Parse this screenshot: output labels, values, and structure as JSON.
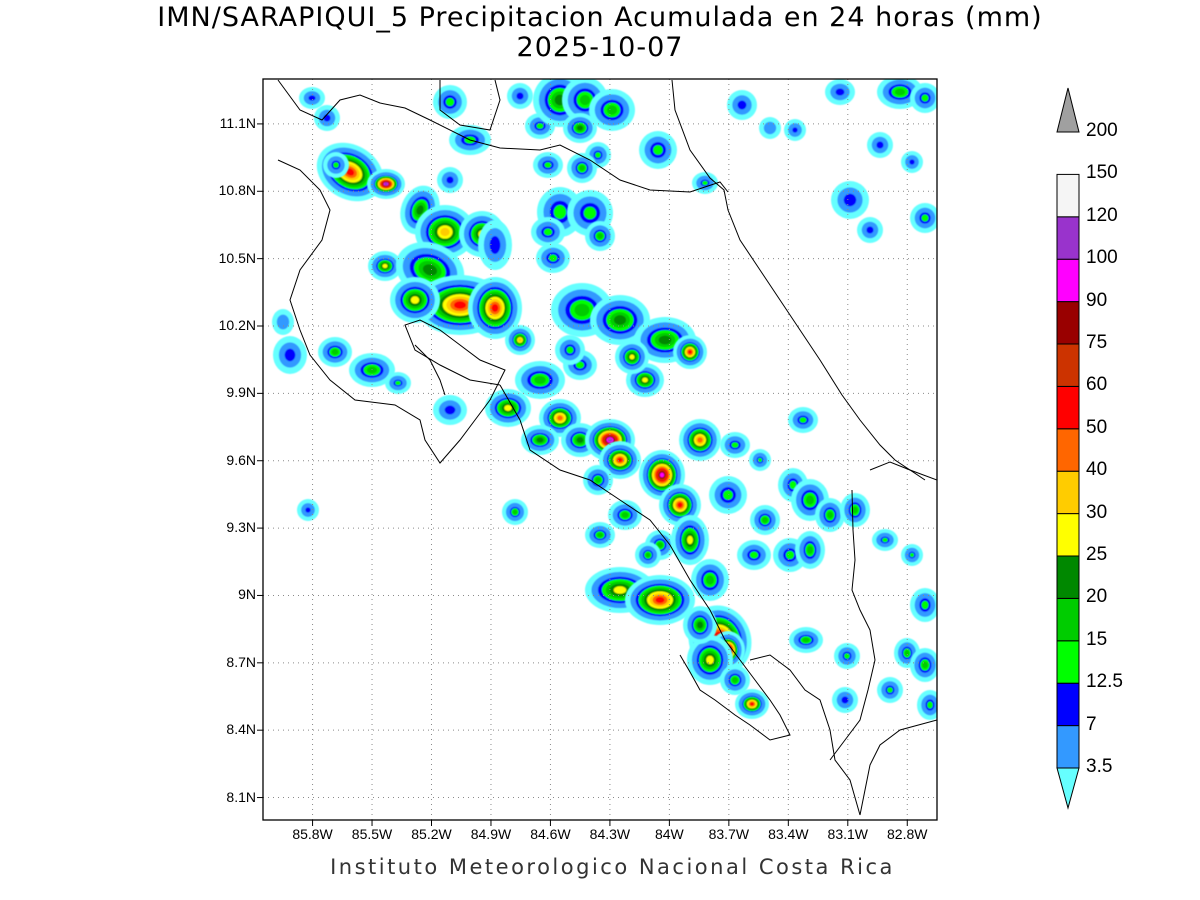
{
  "title": {
    "line1": "IMN/SARAPIQUI_5 Precipitacion Acumulada en 24 horas (mm)",
    "line2": "2025-10-07"
  },
  "footer": "Instituto Meteorologico Nacional Costa Rica",
  "map": {
    "lon_range": [
      -86.05,
      -82.65
    ],
    "lat_range": [
      8.0,
      11.3
    ],
    "lat_ticks": [
      "11.1N",
      "10.8N",
      "10.5N",
      "10.2N",
      "9.9N",
      "9.6N",
      "9.3N",
      "9N",
      "8.7N",
      "8.4N",
      "8.1N"
    ],
    "lon_ticks": [
      "85.8W",
      "85.5W",
      "85.2W",
      "84.9W",
      "84.6W",
      "84.3W",
      "84W",
      "83.7W",
      "83.4W",
      "83.1W",
      "82.8W"
    ],
    "gridlines": "dotted"
  },
  "legend": {
    "levels": [
      "3.5",
      "7",
      "12.5",
      "15",
      "20",
      "25",
      "30",
      "40",
      "50",
      "60",
      "75",
      "90",
      "100",
      "120",
      "150",
      "200"
    ],
    "colors": [
      "#66ffff",
      "#3399ff",
      "#0000ff",
      "#00ff00",
      "#00cc00",
      "#008800",
      "#ffff00",
      "#ffcc00",
      "#ff6600",
      "#ff0000",
      "#cc3300",
      "#990000",
      "#ff00ff",
      "#9933cc",
      "#f5f5f5",
      "#a0a0a0"
    ]
  }
}
